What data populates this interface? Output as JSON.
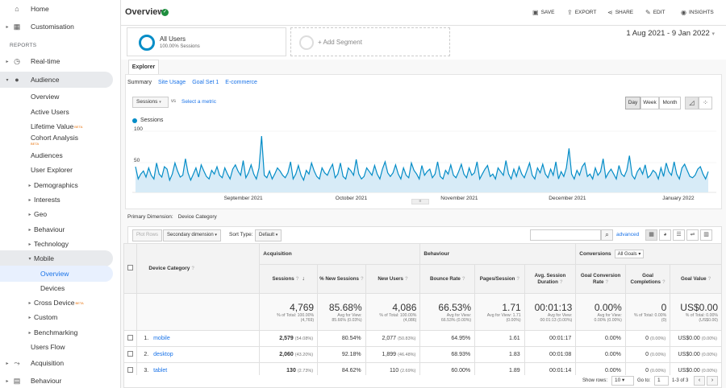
{
  "sidebar": {
    "top_items": [
      {
        "label": "Home",
        "icon": "home-icon"
      },
      {
        "label": "Customisation",
        "icon": "grid-icon"
      }
    ],
    "section_label": "REPORTS",
    "items": [
      {
        "label": "Real-time",
        "icon": "clock-icon"
      },
      {
        "label": "Audience",
        "icon": "person-icon"
      },
      {
        "label": "Overview"
      },
      {
        "label": "Active Users"
      },
      {
        "label": "Lifetime Value",
        "badge": "BETA"
      },
      {
        "label": "Cohort Analysis",
        "badge": "BETA"
      },
      {
        "label": "Audiences"
      },
      {
        "label": "User Explorer"
      },
      {
        "label": "Demographics"
      },
      {
        "label": "Interests"
      },
      {
        "label": "Geo"
      },
      {
        "label": "Behaviour"
      },
      {
        "label": "Technology"
      },
      {
        "label": "Mobile"
      },
      {
        "label": "Overview"
      },
      {
        "label": "Devices"
      },
      {
        "label": "Cross Device",
        "badge": "BETA"
      },
      {
        "label": "Custom"
      },
      {
        "label": "Benchmarking"
      },
      {
        "label": "Users Flow"
      },
      {
        "label": "Acquisition",
        "icon": "acquisition-icon"
      },
      {
        "label": "Behaviour",
        "icon": "behaviour-icon"
      }
    ]
  },
  "header": {
    "title": "Overview",
    "tools": {
      "save": "SAVE",
      "export": "EXPORT",
      "share": "SHARE",
      "edit": "EDIT",
      "insights": "INSIGHTS"
    }
  },
  "segments": {
    "seg1_title": "All Users",
    "seg1_sub": "100.00% Sessions",
    "add_segment": "+ Add Segment",
    "date_range": "1 Aug 2021 - 9 Jan 2022"
  },
  "explorer": {
    "tab": "Explorer",
    "subtabs": [
      "Summary",
      "Site Usage",
      "Goal Set 1",
      "E-commerce"
    ],
    "metric": "Sessions",
    "vs": "vs",
    "select_metric": "Select a metric",
    "granularity": [
      "Day",
      "Week",
      "Month"
    ]
  },
  "chart_data": {
    "type": "line",
    "series": [
      {
        "name": "Sessions",
        "color": "#058dc7"
      }
    ],
    "legend": "Sessions",
    "x_tick_labels": [
      "September 2021",
      "October 2021",
      "November 2021",
      "December 2021",
      "January 2022"
    ],
    "y_tick_labels": [
      "100",
      "50"
    ],
    "ylim": [
      0,
      100
    ],
    "values": [
      42,
      22,
      30,
      35,
      25,
      40,
      28,
      22,
      48,
      30,
      25,
      42,
      38,
      20,
      30,
      48,
      35,
      25,
      28,
      55,
      32,
      20,
      30,
      40,
      25,
      45,
      35,
      26,
      22,
      36,
      30,
      42,
      28,
      24,
      40,
      30,
      22,
      38,
      45,
      35,
      28,
      52,
      24,
      32,
      45,
      30,
      22,
      40,
      92,
      28,
      24,
      35,
      22,
      30,
      40,
      35,
      28,
      24,
      32,
      50,
      22,
      30,
      44,
      28,
      20,
      36,
      30,
      48,
      35,
      26,
      22,
      40,
      32,
      28,
      38,
      46,
      24,
      30,
      48,
      26,
      22,
      40,
      35,
      28,
      54,
      30,
      22,
      26,
      40,
      34,
      28,
      44,
      30,
      22,
      38,
      50,
      32,
      26,
      32,
      45,
      30,
      22,
      40,
      28,
      24,
      48,
      36,
      30,
      22,
      44,
      28,
      34,
      38,
      24,
      30,
      50,
      26,
      22,
      36,
      30,
      45,
      28,
      24,
      34,
      46,
      30,
      24,
      40,
      28,
      32,
      50,
      22,
      30,
      38,
      44,
      26,
      30,
      22,
      40,
      34,
      28,
      52,
      30,
      22,
      38,
      26,
      42,
      30,
      24,
      36,
      48,
      28,
      22,
      40,
      32,
      46,
      30,
      24,
      38,
      28,
      50,
      22,
      34,
      26,
      40,
      72,
      30,
      22,
      36,
      28,
      42,
      48,
      26,
      30,
      22,
      40,
      28,
      34,
      55,
      24,
      32,
      38,
      30,
      22,
      44,
      30,
      26,
      36,
      60,
      28,
      22,
      34,
      40,
      30,
      45,
      24,
      28,
      36,
      32,
      22,
      40,
      26,
      48,
      34,
      28,
      50,
      30,
      22,
      40,
      46,
      36,
      26,
      24,
      28,
      38,
      42,
      30,
      22,
      34
    ]
  },
  "table_controls": {
    "plot_rows": "Plot Rows",
    "secondary_dimension": "Secondary dimension",
    "sort_type_label": "Sort Type:",
    "sort_type_value": "Default",
    "advanced": "advanced",
    "primary_dimension_label": "Primary Dimension:",
    "primary_dimension_value": "Device Category"
  },
  "table": {
    "group_headers": {
      "acquisition": "Acquisition",
      "behaviour": "Behaviour",
      "conversions": "Conversions",
      "conversions_dd": "All Goals"
    },
    "dimension_header": "Device Category",
    "columns": [
      "Sessions",
      "% New Sessions",
      "New Users",
      "Bounce Rate",
      "Pages/Session",
      "Avg. Session Duration",
      "Goal Conversion Rate",
      "Goal Completions",
      "Goal Value"
    ],
    "totals": [
      {
        "big": "4,769",
        "sm1": "% of Total: 100.00%",
        "sm2": "(4,769)"
      },
      {
        "big": "85.68%",
        "sm1": "Avg for View:",
        "sm2": "85.66% (0.03%)"
      },
      {
        "big": "4,086",
        "sm1": "% of Total: 100.00%",
        "sm2": "(4,086)"
      },
      {
        "big": "66.53%",
        "sm1": "Avg for View:",
        "sm2": "66.53% (0.00%)"
      },
      {
        "big": "1.71",
        "sm1": "Avg for View: 1.71",
        "sm2": "(0.00%)"
      },
      {
        "big": "00:01:13",
        "sm1": "Avg for View:",
        "sm2": "00:01:13 (0.00%)"
      },
      {
        "big": "0.00%",
        "sm1": "Avg for View:",
        "sm2": "0.00% (0.00%)"
      },
      {
        "big": "0",
        "sm1": "% of Total: 0.00%",
        "sm2": "(0)"
      },
      {
        "big": "US$0.00",
        "sm1": "% of Total: 0.00%",
        "sm2": "(US$0.00)"
      }
    ],
    "rows": [
      {
        "idx": "1.",
        "name": "mobile",
        "sessions": "2,579",
        "sessions_pct": "(54.08%)",
        "new_sessions": "80.54%",
        "new_users": "2,077",
        "new_users_pct": "(50.83%)",
        "bounce": "64.95%",
        "pages": "1.61",
        "duration": "00:01:17",
        "conv_rate": "0.00%",
        "completions": "0",
        "completions_pct": "(0.00%)",
        "value": "US$0.00",
        "value_pct": "(0.00%)"
      },
      {
        "idx": "2.",
        "name": "desktop",
        "sessions": "2,060",
        "sessions_pct": "(43.20%)",
        "new_sessions": "92.18%",
        "new_users": "1,899",
        "new_users_pct": "(46.48%)",
        "bounce": "68.93%",
        "pages": "1.83",
        "duration": "00:01:08",
        "conv_rate": "0.00%",
        "completions": "0",
        "completions_pct": "(0.00%)",
        "value": "US$0.00",
        "value_pct": "(0.00%)"
      },
      {
        "idx": "3.",
        "name": "tablet",
        "sessions": "130",
        "sessions_pct": "(2.73%)",
        "new_sessions": "84.62%",
        "new_users": "110",
        "new_users_pct": "(2.69%)",
        "bounce": "60.00%",
        "pages": "1.89",
        "duration": "00:01:14",
        "conv_rate": "0.00%",
        "completions": "0",
        "completions_pct": "(0.00%)",
        "value": "US$0.00",
        "value_pct": "(0.00%)"
      }
    ]
  },
  "footer": {
    "show_rows_label": "Show rows:",
    "show_rows_value": "10",
    "goto_label": "Go to:",
    "goto_value": "1",
    "range": "1-3 of 3"
  }
}
